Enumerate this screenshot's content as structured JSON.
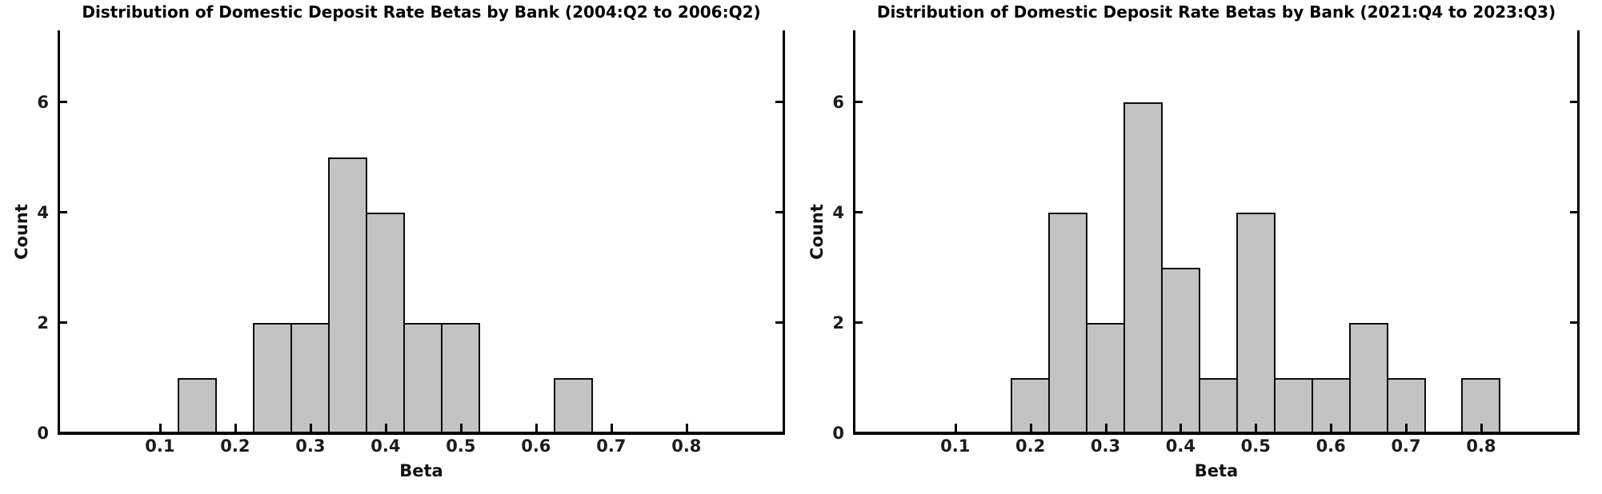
{
  "figure": {
    "background": "#ffffff",
    "text_color": "#1c1c1c",
    "spine_color": "#000000"
  },
  "chart_data": [
    {
      "type": "bar",
      "subtype": "histogram",
      "title": "Distribution of Domestic Deposit Rate Betas by Bank (2004:Q2 to 2006:Q2)",
      "xlabel": "Beta",
      "ylabel": "Count",
      "bin_width": 0.05,
      "bin_edges": [
        0.125,
        0.175,
        0.225,
        0.275,
        0.325,
        0.375,
        0.425,
        0.475,
        0.525,
        0.575,
        0.625,
        0.675
      ],
      "counts": [
        1,
        0,
        2,
        2,
        5,
        4,
        2,
        2,
        0,
        0,
        1
      ],
      "xticks": [
        0.1,
        0.2,
        0.3,
        0.4,
        0.5,
        0.6,
        0.7,
        0.8
      ],
      "xtick_labels": [
        "0.1",
        "0.2",
        "0.3",
        "0.4",
        "0.5",
        "0.6",
        "0.7",
        "0.8"
      ],
      "yticks": [
        0,
        2,
        4,
        6
      ],
      "ytick_labels": [
        "0",
        "2",
        "4",
        "6"
      ],
      "xlim": [
        -0.035,
        0.93
      ],
      "ylim": [
        0,
        7.3
      ],
      "grid": false,
      "legend": null,
      "bar_fill": "#c3c3c3",
      "bar_edge": "#0c0c0c"
    },
    {
      "type": "bar",
      "subtype": "histogram",
      "title": "Distribution of Domestic Deposit Rate Betas by Bank (2021:Q4 to 2023:Q3)",
      "xlabel": "Beta",
      "ylabel": "Count",
      "bin_width": 0.05,
      "bin_edges": [
        0.175,
        0.225,
        0.275,
        0.325,
        0.375,
        0.425,
        0.475,
        0.525,
        0.575,
        0.625,
        0.675,
        0.725,
        0.775,
        0.825
      ],
      "counts": [
        1,
        4,
        2,
        6,
        3,
        1,
        4,
        1,
        1,
        2,
        1,
        0,
        1
      ],
      "xticks": [
        0.1,
        0.2,
        0.3,
        0.4,
        0.5,
        0.6,
        0.7,
        0.8
      ],
      "xtick_labels": [
        "0.1",
        "0.2",
        "0.3",
        "0.4",
        "0.5",
        "0.6",
        "0.7",
        "0.8"
      ],
      "yticks": [
        0,
        2,
        4,
        6
      ],
      "ytick_labels": [
        "0",
        "2",
        "4",
        "6"
      ],
      "xlim": [
        -0.035,
        0.93
      ],
      "ylim": [
        0,
        7.3
      ],
      "grid": false,
      "legend": null,
      "bar_fill": "#c3c3c3",
      "bar_edge": "#0c0c0c"
    }
  ]
}
